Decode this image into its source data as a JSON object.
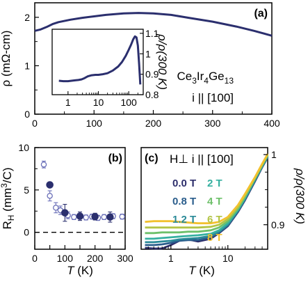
{
  "chart_data": [
    {
      "panel": "a",
      "type": "line",
      "panel_label": "(a)",
      "xlabel": "T (K)",
      "ylabel": "ρ (mΩ-cm)",
      "xlim": [
        0,
        400
      ],
      "ylim": [
        0,
        2.3
      ],
      "xticks": [
        "0",
        "100",
        "200",
        "300",
        "400"
      ],
      "yticks": [
        "0",
        "1",
        "2"
      ],
      "annotations": {
        "compound": "Ce3Ir4Ge13",
        "direction": "i || [100]"
      },
      "series": [
        {
          "color": "#2b2f6e",
          "x": [
            0,
            10,
            20,
            30,
            40,
            60,
            80,
            100,
            120,
            150,
            175,
            200,
            230,
            260,
            300,
            340,
            370,
            400
          ],
          "y": [
            1.72,
            1.75,
            1.8,
            1.86,
            1.9,
            1.95,
            1.99,
            2.02,
            2.05,
            2.08,
            2.09,
            2.08,
            2.05,
            1.99,
            1.91,
            1.81,
            1.72,
            1.62
          ]
        }
      ],
      "inset": {
        "type": "line",
        "xscale": "log",
        "xlim": [
          0.3,
          300
        ],
        "ylim": [
          0.8,
          1.12
        ],
        "xticks": [
          "1",
          "10",
          "100"
        ],
        "yticks": [
          "0.8",
          "0.9",
          "1",
          "1.1"
        ],
        "ylabel": "ρ/ρ(300 K)",
        "series": [
          {
            "color": "#2b2f6e",
            "x": [
              0.5,
              0.7,
              1.0,
              1.3,
              1.7,
              2.2,
              2.8,
              3.5,
              4.5,
              6,
              8,
              10,
              14,
              20,
              30,
              45,
              60,
              80,
              100,
              120,
              140,
              160,
              180,
              200,
              220,
              240
            ],
            "y": [
              0.868,
              0.866,
              0.866,
              0.868,
              0.87,
              0.872,
              0.875,
              0.881,
              0.89,
              0.895,
              0.897,
              0.897,
              0.9,
              0.905,
              0.918,
              0.938,
              0.96,
              0.99,
              1.02,
              1.045,
              1.07,
              1.085,
              1.08,
              1.04,
              0.95,
              0.85
            ]
          }
        ]
      }
    },
    {
      "panel": "b",
      "type": "scatter",
      "panel_label": "(b)",
      "xlabel": "T (K)",
      "ylabel": "RH (mm3/C)",
      "xlim": [
        0,
        300
      ],
      "ylim": [
        -2,
        10
      ],
      "xticks": [
        "0",
        "50",
        "100",
        "150",
        "200",
        "250",
        "300"
      ],
      "yticks": [
        "0",
        "5",
        "10"
      ],
      "reference_line_y": 0,
      "series": [
        {
          "marker": "open",
          "color": "#6a6fb8",
          "x": [
            30,
            50,
            70,
            85,
            110,
            130,
            150,
            170,
            190,
            210,
            230,
            260,
            290
          ],
          "y": [
            8.0,
            4.3,
            2.9,
            2.6,
            2.0,
            1.8,
            1.85,
            1.75,
            1.85,
            1.7,
            1.8,
            1.9,
            1.85
          ],
          "err": [
            0.4,
            0.6,
            0.6,
            0.5,
            0.4,
            0.3,
            0.3,
            0.3,
            0.3,
            0.3,
            0.3,
            0.3,
            0.3
          ]
        },
        {
          "marker": "filled",
          "color": "#2b2f6e",
          "x": [
            50,
            100,
            150,
            200,
            250
          ],
          "y": [
            5.6,
            2.3,
            1.9,
            1.85,
            1.8
          ],
          "err": [
            0,
            1.0,
            0.5,
            0.4,
            0.6
          ]
        }
      ]
    },
    {
      "panel": "c",
      "type": "line",
      "panel_label": "(c)",
      "xlabel": "T (K)",
      "ylabel": "ρ/ρ(300 K)",
      "xscale": "log",
      "xlim": [
        0.3,
        50
      ],
      "ylim": [
        0.865,
        1.01
      ],
      "xticks": [
        "1",
        "10"
      ],
      "yticks": [
        "0.9",
        "1"
      ],
      "legend": {
        "header": "H⊥ i || [100]",
        "entries": [
          "0.0 T",
          "2 T",
          "0.8 T",
          "4 T",
          "1.2 T",
          "6 T",
          "8 T"
        ]
      },
      "series": [
        {
          "name": "0.0 T",
          "color": "#2d2e6b",
          "x": [
            0.35,
            0.5,
            0.7,
            1.0,
            1.4,
            2.0,
            3.0,
            5,
            7,
            10,
            15,
            20,
            30,
            40,
            50
          ],
          "y": [
            0.867,
            0.866,
            0.866,
            0.871,
            0.877,
            0.879,
            0.876,
            0.88,
            0.888,
            0.898,
            0.918,
            0.935,
            0.962,
            0.982,
            0.996
          ]
        },
        {
          "name": "0.8 T",
          "color": "#2a5d8c",
          "x": [
            0.35,
            0.5,
            0.7,
            1.0,
            1.4,
            2.0,
            3.0,
            5,
            7,
            10,
            15,
            20,
            30,
            40,
            50
          ],
          "y": [
            0.871,
            0.871,
            0.872,
            0.874,
            0.877,
            0.878,
            0.878,
            0.882,
            0.889,
            0.899,
            0.919,
            0.936,
            0.963,
            0.983,
            0.997
          ]
        },
        {
          "name": "1.2 T",
          "color": "#2a8a98",
          "x": [
            0.35,
            0.5,
            0.7,
            1.0,
            1.4,
            2.0,
            3.0,
            5,
            7,
            10,
            15,
            20,
            30,
            40,
            50
          ],
          "y": [
            0.875,
            0.875,
            0.876,
            0.877,
            0.879,
            0.88,
            0.881,
            0.884,
            0.89,
            0.9,
            0.92,
            0.937,
            0.964,
            0.983,
            0.997
          ]
        },
        {
          "name": "2 T",
          "color": "#35b0a0",
          "x": [
            0.35,
            0.5,
            0.7,
            1.0,
            1.4,
            2.0,
            3.0,
            5,
            7,
            10,
            15,
            20,
            30,
            40,
            50
          ],
          "y": [
            0.88,
            0.88,
            0.881,
            0.882,
            0.883,
            0.884,
            0.885,
            0.887,
            0.892,
            0.902,
            0.921,
            0.938,
            0.965,
            0.984,
            0.998
          ]
        },
        {
          "name": "4 T",
          "color": "#6ec06a",
          "x": [
            0.35,
            0.5,
            0.7,
            1.0,
            1.4,
            2.0,
            3.0,
            5,
            7,
            10,
            15,
            20,
            30,
            40,
            50
          ],
          "y": [
            0.888,
            0.888,
            0.889,
            0.889,
            0.889,
            0.89,
            0.89,
            0.892,
            0.896,
            0.905,
            0.923,
            0.94,
            0.966,
            0.985,
            0.999
          ]
        },
        {
          "name": "6 T",
          "color": "#b3c445",
          "x": [
            0.35,
            0.5,
            0.7,
            1.0,
            1.4,
            2.0,
            3.0,
            5,
            7,
            10,
            15,
            20,
            30,
            40,
            50
          ],
          "y": [
            0.896,
            0.896,
            0.896,
            0.896,
            0.896,
            0.896,
            0.896,
            0.897,
            0.9,
            0.908,
            0.925,
            0.942,
            0.967,
            0.986,
            1.0
          ]
        },
        {
          "name": "8 T",
          "color": "#f2c12e",
          "x": [
            0.35,
            0.5,
            0.7,
            1.0,
            1.4,
            2.0,
            3.0,
            5,
            7,
            10,
            15,
            20,
            30,
            40,
            50
          ],
          "y": [
            0.904,
            0.905,
            0.905,
            0.905,
            0.904,
            0.903,
            0.902,
            0.902,
            0.904,
            0.911,
            0.928,
            0.944,
            0.968,
            0.987,
            1.001
          ]
        }
      ]
    }
  ]
}
